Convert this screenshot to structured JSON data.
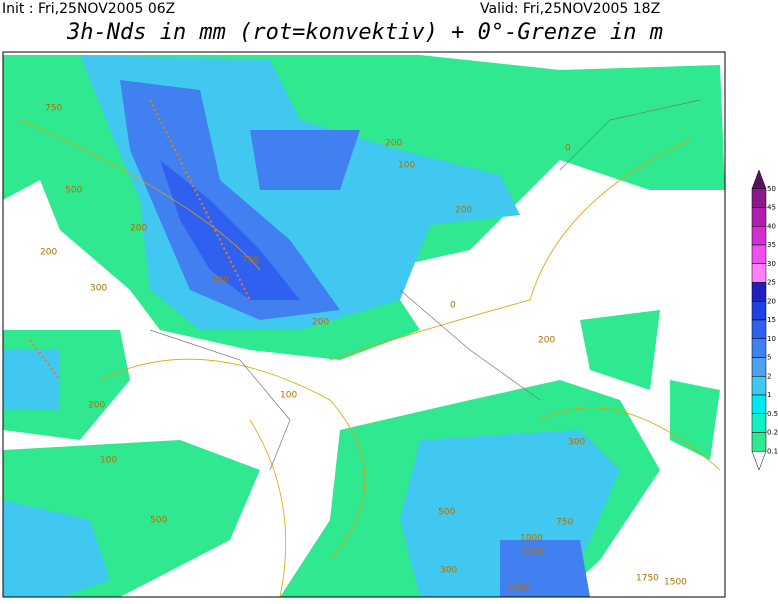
{
  "header": {
    "init": "Init : Fri,25NOV2005 06Z",
    "valid": "Valid: Fri,25NOV2005 18Z",
    "title": "3h-Nds in mm (rot=konvektiv) + 0°-Grenze in m"
  },
  "colorbar": {
    "labels": [
      "50",
      "45",
      "40",
      "35",
      "30",
      "25",
      "20",
      "15",
      "10",
      "5",
      "2",
      "1",
      "0.5",
      "0.2",
      "0.1"
    ],
    "colors": [
      "#5a1060",
      "#8a1a8a",
      "#b020b0",
      "#d030d0",
      "#f050f0",
      "#ff80ff",
      "#2020c0",
      "#2040e0",
      "#3060f0",
      "#4080f0",
      "#50a0f0",
      "#40c8f0",
      "#00e8f0",
      "#10f0c0",
      "#30e890",
      "#ffffff"
    ]
  },
  "map": {
    "contour_labels": [
      "750",
      "500",
      "200",
      "300",
      "200",
      "100",
      "200",
      "200",
      "750",
      "500",
      "0",
      "200",
      "100",
      "200",
      "300",
      "500",
      "1000",
      "1250",
      "750",
      "1500",
      "1750",
      "1500",
      "500",
      "300",
      "200",
      "100",
      "0"
    ]
  }
}
